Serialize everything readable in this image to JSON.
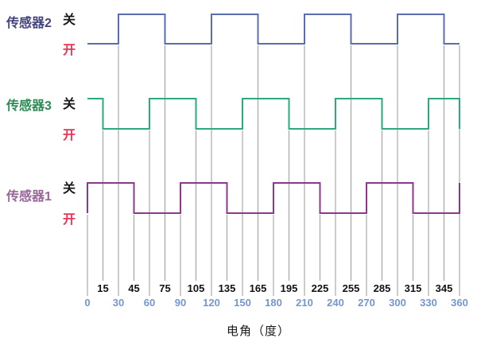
{
  "chart_data": {
    "type": "line",
    "subtype": "digital-timing-diagram",
    "xlabel": "电角（度）",
    "xlim": [
      0,
      360
    ],
    "x_tick_step_deg": 15,
    "x_ticks_minor_black": [
      15,
      45,
      75,
      105,
      135,
      165,
      195,
      225,
      255,
      285,
      315,
      345
    ],
    "x_ticks_major_blue": [
      0,
      30,
      60,
      90,
      120,
      150,
      180,
      210,
      240,
      270,
      300,
      330,
      360
    ],
    "grid": true,
    "legend_position": "left",
    "series": [
      {
        "id": "s2",
        "name": "传感器2",
        "row": "top",
        "color": "#5b6dad",
        "name_color": "#43437d",
        "state_high_label": "关",
        "state_low_label": "开",
        "initial_level": "low",
        "toggle_degrees": [
          30,
          75,
          120,
          165,
          210,
          255,
          300,
          345
        ],
        "start_edge_at_0": false,
        "high_intervals_deg": [
          [
            30,
            75
          ],
          [
            120,
            165
          ],
          [
            210,
            255
          ],
          [
            300,
            345
          ]
        ]
      },
      {
        "id": "s3",
        "name": "传感器3",
        "row": "middle",
        "color": "#2fa97c",
        "name_color": "#2e8b57",
        "state_high_label": "关",
        "state_low_label": "开",
        "initial_level": "high",
        "toggle_degrees": [
          15,
          60,
          105,
          150,
          195,
          240,
          285,
          330,
          360
        ],
        "start_edge_at_0": false,
        "high_intervals_deg": [
          [
            0,
            15
          ],
          [
            60,
            105
          ],
          [
            150,
            195
          ],
          [
            240,
            285
          ],
          [
            330,
            360
          ]
        ]
      },
      {
        "id": "s1",
        "name": "传感器1",
        "row": "bottom",
        "color": "#8b3a8b",
        "name_color": "#996699",
        "state_high_label": "关",
        "state_low_label": "开",
        "initial_level": "high",
        "toggle_degrees": [
          45,
          90,
          135,
          180,
          225,
          270,
          315,
          360
        ],
        "start_edge_at_0": true,
        "high_intervals_deg": [
          [
            0,
            45
          ],
          [
            90,
            135
          ],
          [
            180,
            225
          ],
          [
            270,
            315
          ]
        ]
      }
    ],
    "colors": {
      "grid": "#999999",
      "tick_label_black": "#111111",
      "tick_label_blue": "#7496ce",
      "on_label_red": "#ee3355",
      "off_label_black": "#1a1a1a"
    }
  }
}
